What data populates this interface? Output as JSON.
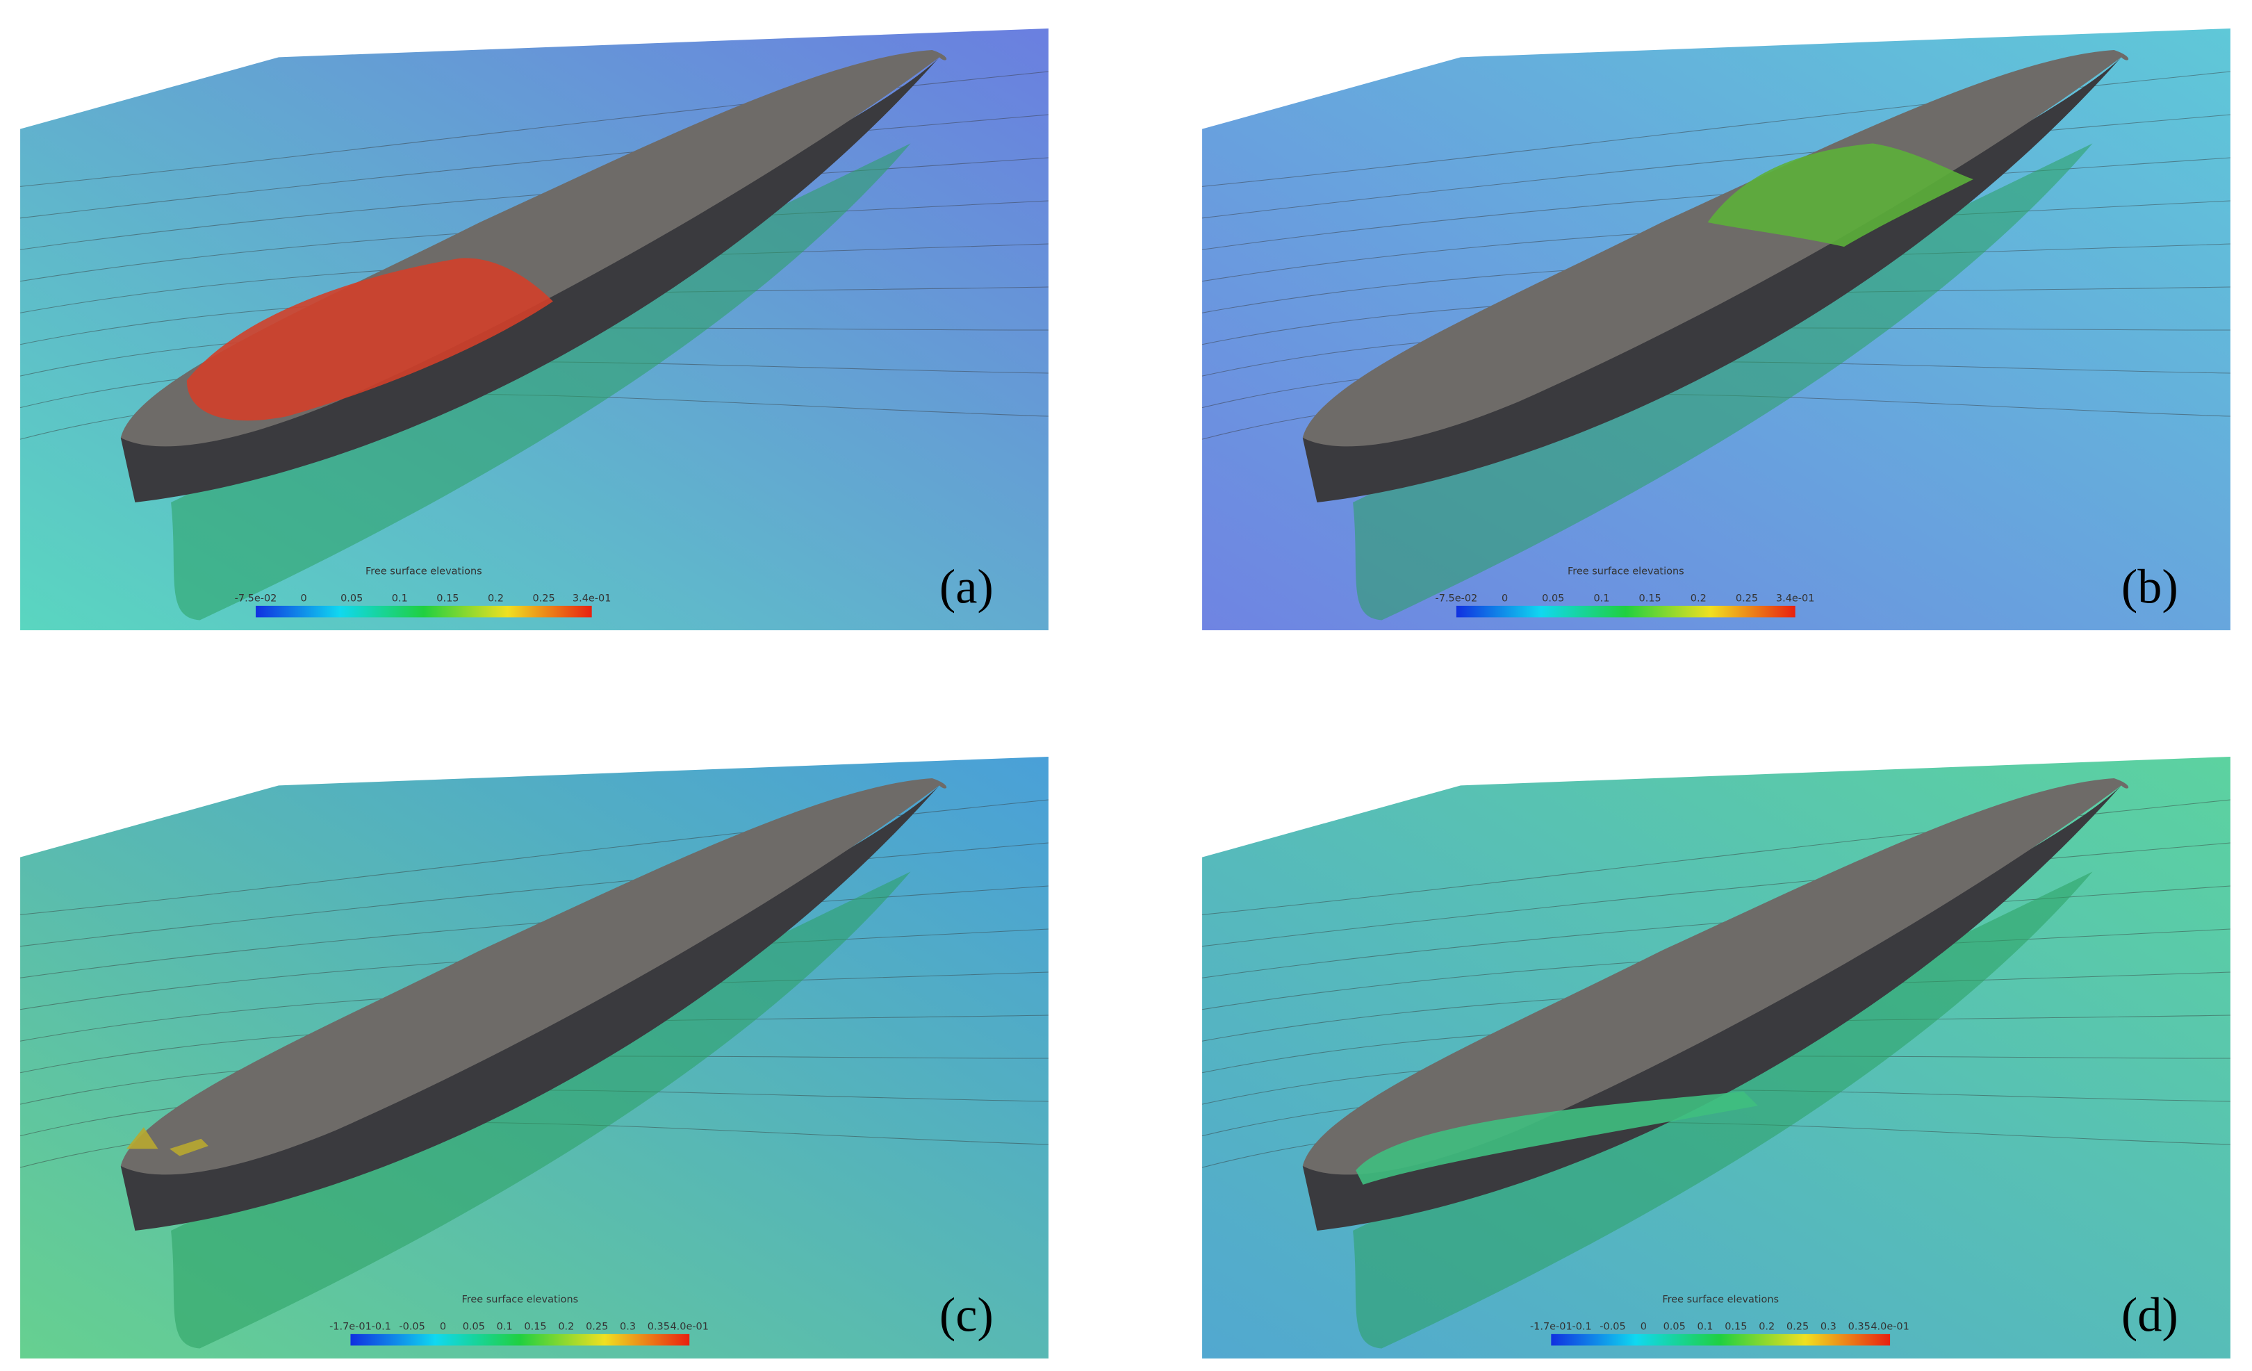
{
  "panels": [
    {
      "label": "(a)",
      "colorbar": {
        "title": "Free surface elevations",
        "ticks": [
          "-7.5e-02",
          "0",
          "0.05",
          "0.1",
          "0.15",
          "0.2",
          "0.25",
          "3.4e-01"
        ]
      }
    },
    {
      "label": "(b)",
      "colorbar": {
        "title": "Free surface elevations",
        "ticks": [
          "-7.5e-02",
          "0",
          "0.05",
          "0.1",
          "0.15",
          "0.2",
          "0.25",
          "3.4e-01"
        ]
      }
    },
    {
      "label": "(c)",
      "colorbar": {
        "title": "Free surface elevations",
        "ticks": [
          "-1.7e-01",
          "-0.1",
          "-0.05",
          "0",
          "0.05",
          "0.1",
          "0.15",
          "0.2",
          "0.25",
          "0.3",
          "0.35",
          "4.0e-01"
        ]
      }
    },
    {
      "label": "(d)",
      "colorbar": {
        "title": "Free surface elevations",
        "ticks": [
          "-1.7e-01",
          "-0.1",
          "-0.05",
          "0",
          "0.05",
          "0.1",
          "0.15",
          "0.2",
          "0.25",
          "0.3",
          "0.35",
          "4.0e-01"
        ]
      }
    }
  ]
}
